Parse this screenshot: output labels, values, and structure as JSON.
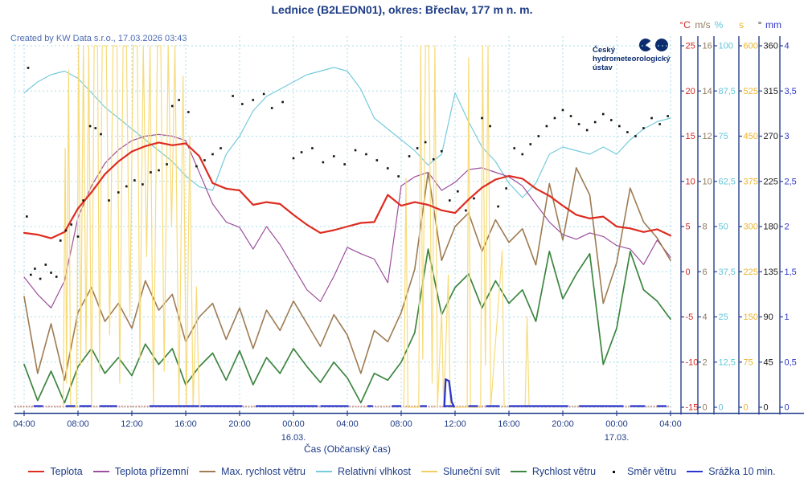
{
  "title": "Lednice (B2LEDN01), okres: Břeclav, 177 m n. m.",
  "credits": "Created by KW Data s.r.o., 17.03.2026 03:43",
  "logo": {
    "line1": "Český",
    "line2": "hydrometeorologický",
    "line3": "ústav",
    "color": "#0d2d6e"
  },
  "colors": {
    "title_text": "#1e3c87",
    "credits_text": "#4d6ab2",
    "axis_line": "#27418c",
    "grid": "#a8dce8",
    "baseline_band": "#d2a091",
    "background": "#ffffff"
  },
  "legend": {
    "items": [
      {
        "label": "Teplota",
        "color": "#dd2c20",
        "swatch": "line"
      },
      {
        "label": "Teplota přízemní",
        "color": "#9c4f9c",
        "swatch": "line"
      },
      {
        "label": "Max. rychlost větru",
        "color": "#9e7b52",
        "swatch": "line"
      },
      {
        "label": "Relativní vlhkost",
        "color": "#76cbdc",
        "swatch": "line"
      },
      {
        "label": "Sluneční svit",
        "color": "#f2cf63",
        "swatch": "line"
      },
      {
        "label": "Rychlost větru",
        "color": "#3d8540",
        "swatch": "line"
      },
      {
        "label": "Směr větru",
        "color": "#111111",
        "swatch": "dot"
      },
      {
        "label": "Srážka 10 min.",
        "color": "#2b36cf",
        "swatch": "line"
      }
    ]
  },
  "chart_data": {
    "type": "line",
    "title": "Lednice (B2LEDN01), okres: Břeclav, 177 m n. m.",
    "xlabel": "Čas (Občanský čas)",
    "x_axis": {
      "hours_total": 48,
      "tick_step_hours": 4,
      "tick_labels": [
        "04:00",
        "08:00",
        "12:00",
        "16:00",
        "20:00",
        "00:00",
        "04:00",
        "08:00",
        "12:00",
        "16:00",
        "20:00",
        "00:00",
        "04:00"
      ],
      "date_labels": [
        {
          "hour": 20,
          "label": "16.03."
        },
        {
          "hour": 44,
          "label": "17.03."
        }
      ]
    },
    "y_axes": [
      {
        "unit": "°C",
        "color": "#d32b20",
        "min": -15,
        "max": 25,
        "ticks": [
          "25",
          "20",
          "15",
          "10",
          "5",
          "0",
          "-5",
          "-10",
          "-15"
        ]
      },
      {
        "unit": "m/s",
        "color": "#8f7a5e",
        "min": 0,
        "max": 16,
        "ticks": [
          "16",
          "14",
          "12",
          "10",
          "8",
          "6",
          "4",
          "2",
          "0"
        ]
      },
      {
        "unit": "%",
        "color": "#63c6d9",
        "min": 0,
        "max": 100,
        "ticks": [
          "100",
          "87,5",
          "75",
          "62,5",
          "50",
          "37,5",
          "25",
          "12,5",
          "0"
        ]
      },
      {
        "unit": "s",
        "color": "#edb52c",
        "min": 0,
        "max": 600,
        "ticks": [
          "600",
          "525",
          "450",
          "375",
          "300",
          "225",
          "150",
          "75",
          "0"
        ]
      },
      {
        "unit": "°",
        "color": "#1a1a1a",
        "min": 0,
        "max": 360,
        "ticks": [
          "360",
          "315",
          "270",
          "225",
          "180",
          "135",
          "90",
          "45",
          "0"
        ]
      },
      {
        "unit": "mm",
        "color": "#2d35c8",
        "min": 0,
        "max": 4,
        "ticks": [
          "4",
          "3,5",
          "3",
          "2,5",
          "2",
          "1,5",
          "1",
          "0,5",
          "0"
        ]
      }
    ],
    "series": [
      {
        "name": "Relativní vlhkost",
        "unit": "%",
        "color": "#76cbdc",
        "width": 1.2,
        "mode": "hourly",
        "axis_min": 0,
        "axis_max": 100,
        "values": [
          87,
          90,
          92,
          93,
          91,
          87,
          83,
          80,
          77,
          74,
          71,
          68,
          64,
          61,
          60,
          70,
          75,
          82,
          86,
          88,
          90,
          92,
          93,
          94,
          93,
          88,
          80,
          77,
          74,
          71,
          67,
          70,
          87,
          79,
          72,
          68,
          62,
          58,
          62,
          70,
          72,
          71,
          70,
          72,
          70,
          74,
          77,
          79,
          80
        ]
      },
      {
        "name": "Teplota přízemní",
        "unit": "°C",
        "color": "#9c4f9c",
        "width": 1.2,
        "mode": "hourly",
        "axis_min": -15,
        "axis_max": 25,
        "values": [
          -0.6,
          -2.5,
          -4.0,
          -1.0,
          6.0,
          9.5,
          12.0,
          13.5,
          14.5,
          15.0,
          15.2,
          15.0,
          14.5,
          11.0,
          7.5,
          5.5,
          4.9,
          2.5,
          5.0,
          3.0,
          0.5,
          -2.0,
          -3.3,
          -0.5,
          2.7,
          2.0,
          1.4,
          -1.2,
          9.5,
          10.5,
          11.0,
          9.0,
          9.9,
          11.3,
          11.5,
          11.0,
          10.5,
          9.5,
          7.5,
          5.5,
          4.1,
          3.6,
          4.3,
          3.9,
          2.9,
          2.5,
          0.8,
          3.5,
          1.6
        ]
      },
      {
        "name": "Max. rychlost větru",
        "unit": "m/s",
        "color": "#9e7b52",
        "width": 1.6,
        "mode": "hourly",
        "axis_min": 0,
        "axis_max": 16,
        "values": [
          4.9,
          1.5,
          3.7,
          1.2,
          4.2,
          5.3,
          3.8,
          4.6,
          3.5,
          5.6,
          4.3,
          5.0,
          2.9,
          4.0,
          4.6,
          3.0,
          4.4,
          2.6,
          4.3,
          3.4,
          4.7,
          3.7,
          2.7,
          4.1,
          3.2,
          1.5,
          3.4,
          2.9,
          4.2,
          6.1,
          10.4,
          6.5,
          8.0,
          8.6,
          6.9,
          8.3,
          7.3,
          7.9,
          6.3,
          9.9,
          7.4,
          10.6,
          9.4,
          4.6,
          6.4,
          9.7,
          8.2,
          7.5,
          6.5
        ]
      },
      {
        "name": "Rychlost větru",
        "unit": "m/s",
        "color": "#3d8540",
        "width": 1.7,
        "mode": "hourly",
        "axis_min": 0,
        "axis_max": 16,
        "values": [
          1.9,
          0.3,
          1.6,
          0.2,
          1.8,
          2.6,
          1.5,
          2.2,
          1.4,
          2.8,
          1.9,
          2.6,
          1.0,
          1.8,
          2.4,
          1.2,
          2.5,
          1.0,
          2.2,
          1.5,
          2.6,
          1.8,
          1.1,
          2.0,
          1.3,
          0.2,
          1.5,
          1.2,
          2.0,
          3.3,
          7.0,
          4.1,
          5.3,
          5.9,
          4.4,
          5.6,
          4.6,
          5.2,
          3.8,
          6.9,
          4.8,
          5.9,
          6.8,
          1.9,
          3.5,
          6.9,
          5.2,
          4.7,
          3.9
        ]
      },
      {
        "name": "Sluneční svit",
        "unit": "s",
        "color": "#f7db79",
        "width": 1.2,
        "mode": "pairs",
        "axis_min": 0,
        "axis_max": 600,
        "points": [
          [
            2.9,
            0
          ],
          [
            3.05,
            430
          ],
          [
            3.15,
            40
          ],
          [
            3.3,
            560
          ],
          [
            3.45,
            0
          ],
          [
            3.9,
            0
          ],
          [
            4.05,
            600
          ],
          [
            4.2,
            70
          ],
          [
            4.4,
            600
          ],
          [
            4.6,
            90
          ],
          [
            4.8,
            600
          ],
          [
            5.0,
            0
          ],
          [
            5.2,
            600
          ],
          [
            5.45,
            600
          ],
          [
            5.6,
            60
          ],
          [
            5.8,
            600
          ],
          [
            6.1,
            600
          ],
          [
            6.35,
            120
          ],
          [
            6.6,
            600
          ],
          [
            6.9,
            600
          ],
          [
            7.1,
            40
          ],
          [
            7.35,
            600
          ],
          [
            7.6,
            600
          ],
          [
            7.85,
            150
          ],
          [
            8.1,
            600
          ],
          [
            8.4,
            600
          ],
          [
            8.6,
            80
          ],
          [
            8.85,
            600
          ],
          [
            9.1,
            250
          ],
          [
            9.35,
            600
          ],
          [
            9.6,
            0
          ],
          [
            9.9,
            600
          ],
          [
            10.15,
            600
          ],
          [
            10.4,
            60
          ],
          [
            10.7,
            600
          ],
          [
            10.95,
            300
          ],
          [
            11.2,
            600
          ],
          [
            11.5,
            0
          ],
          [
            11.8,
            550
          ],
          [
            12.05,
            0
          ],
          [
            12.3,
            450
          ],
          [
            12.55,
            0
          ],
          [
            12.8,
            200
          ],
          [
            13.0,
            0
          ],
          [
            28.2,
            0
          ],
          [
            28.35,
            380
          ],
          [
            28.5,
            0
          ],
          [
            29.3,
            0
          ],
          [
            29.45,
            600
          ],
          [
            29.6,
            80
          ],
          [
            29.8,
            600
          ],
          [
            30.05,
            600
          ],
          [
            30.3,
            40
          ],
          [
            30.5,
            600
          ],
          [
            30.7,
            0
          ],
          [
            31.0,
            160
          ],
          [
            31.15,
            0
          ],
          [
            31.5,
            220
          ],
          [
            31.65,
            0
          ],
          [
            32.9,
            0
          ],
          [
            33.0,
            580
          ],
          [
            33.15,
            0
          ],
          [
            33.9,
            0
          ],
          [
            34.05,
            600
          ],
          [
            34.25,
            70
          ],
          [
            34.45,
            600
          ],
          [
            34.65,
            0
          ],
          [
            35.5,
            260
          ],
          [
            35.65,
            0
          ],
          [
            37.2,
            0
          ],
          [
            37.35,
            150
          ],
          [
            37.5,
            0
          ]
        ]
      },
      {
        "name": "Teplota",
        "unit": "°C",
        "color": "#dd2c20",
        "width": 2.2,
        "mode": "hourly",
        "axis_min": -15,
        "axis_max": 25,
        "values": [
          4.3,
          4.1,
          3.7,
          4.4,
          7.0,
          8.8,
          10.8,
          12.2,
          13.3,
          13.9,
          14.3,
          14.0,
          14.2,
          12.8,
          9.8,
          9.2,
          9.0,
          7.4,
          7.7,
          7.5,
          6.3,
          5.2,
          4.3,
          4.6,
          5.0,
          5.4,
          5.5,
          8.5,
          7.3,
          7.7,
          7.4,
          6.8,
          6.5,
          8.0,
          9.3,
          10.2,
          10.6,
          10.3,
          9.2,
          8.4,
          7.3,
          6.3,
          5.9,
          6.1,
          5.0,
          4.8,
          4.4,
          4.7,
          4.0
        ]
      },
      {
        "name": "Srážka 10 min.",
        "unit": "mm",
        "color": "#2b36cf",
        "width": 2.3,
        "mode": "pairs",
        "axis_min": 0,
        "axis_max": 4,
        "points": [
          [
            31.2,
            0
          ],
          [
            31.3,
            0.31
          ],
          [
            31.55,
            0.29
          ],
          [
            31.75,
            0.06
          ],
          [
            31.95,
            0
          ]
        ],
        "zero_segments": [
          [
            0.7,
            1.4
          ],
          [
            3.1,
            3.8
          ],
          [
            4.1,
            5.0
          ],
          [
            5.6,
            6.9
          ],
          [
            9.3,
            13.0
          ],
          [
            13.1,
            16.2
          ],
          [
            17.2,
            21.8
          ],
          [
            22.0,
            24.1
          ],
          [
            25.5,
            25.9
          ],
          [
            27.3,
            28.0
          ],
          [
            29.4,
            29.9
          ],
          [
            31.2,
            31.95
          ],
          [
            33.0,
            33.7
          ],
          [
            34.3,
            35.3
          ],
          [
            36.0,
            40.4
          ],
          [
            41.2,
            44.5
          ],
          [
            45.0,
            46.1
          ],
          [
            47.0,
            47.7
          ]
        ]
      },
      {
        "name": "Směr větru",
        "unit": "°",
        "color": "#111111",
        "width": 2.6,
        "mode": "dots",
        "axis_min": 0,
        "axis_max": 360,
        "points": [
          [
            0.2,
            190
          ],
          [
            0.3,
            338
          ],
          [
            0.5,
            132
          ],
          [
            0.8,
            138
          ],
          [
            1.2,
            128
          ],
          [
            1.6,
            142
          ],
          [
            2.0,
            134
          ],
          [
            2.4,
            130
          ],
          [
            2.7,
            166
          ],
          [
            3.1,
            176
          ],
          [
            3.5,
            182
          ],
          [
            4.0,
            170
          ],
          [
            4.4,
            206
          ],
          [
            4.9,
            280
          ],
          [
            5.3,
            278
          ],
          [
            5.7,
            272
          ],
          [
            6.3,
            206
          ],
          [
            7.0,
            214
          ],
          [
            7.6,
            220
          ],
          [
            8.2,
            226
          ],
          [
            8.8,
            222
          ],
          [
            9.4,
            234
          ],
          [
            10.0,
            236
          ],
          [
            10.6,
            242
          ],
          [
            11.0,
            300
          ],
          [
            11.5,
            306
          ],
          [
            12.2,
            294
          ],
          [
            12.8,
            240
          ],
          [
            13.4,
            246
          ],
          [
            14.0,
            252
          ],
          [
            14.6,
            258
          ],
          [
            15.5,
            310
          ],
          [
            16.2,
            302
          ],
          [
            17.0,
            306
          ],
          [
            17.8,
            312
          ],
          [
            18.4,
            298
          ],
          [
            19.2,
            304
          ],
          [
            20.0,
            248
          ],
          [
            20.6,
            254
          ],
          [
            21.4,
            258
          ],
          [
            22.2,
            244
          ],
          [
            23.0,
            250
          ],
          [
            23.8,
            242
          ],
          [
            24.6,
            256
          ],
          [
            25.4,
            252
          ],
          [
            26.2,
            246
          ],
          [
            27.0,
            238
          ],
          [
            27.8,
            230
          ],
          [
            28.6,
            250
          ],
          [
            29.2,
            258
          ],
          [
            29.8,
            264
          ],
          [
            30.4,
            247
          ],
          [
            31.0,
            255
          ],
          [
            31.6,
            206
          ],
          [
            32.2,
            215
          ],
          [
            32.8,
            196
          ],
          [
            33.4,
            208
          ],
          [
            34.0,
            288
          ],
          [
            34.6,
            280
          ],
          [
            35.2,
            200
          ],
          [
            35.8,
            218
          ],
          [
            36.4,
            258
          ],
          [
            37.0,
            252
          ],
          [
            37.6,
            262
          ],
          [
            38.2,
            270
          ],
          [
            38.8,
            280
          ],
          [
            39.4,
            288
          ],
          [
            40.0,
            296
          ],
          [
            40.6,
            290
          ],
          [
            41.2,
            282
          ],
          [
            41.8,
            276
          ],
          [
            42.4,
            284
          ],
          [
            43.0,
            292
          ],
          [
            43.6,
            286
          ],
          [
            44.2,
            280
          ],
          [
            44.8,
            274
          ],
          [
            45.4,
            270
          ],
          [
            46.0,
            278
          ],
          [
            46.6,
            288
          ],
          [
            47.2,
            282
          ],
          [
            47.8,
            290
          ]
        ]
      }
    ]
  }
}
